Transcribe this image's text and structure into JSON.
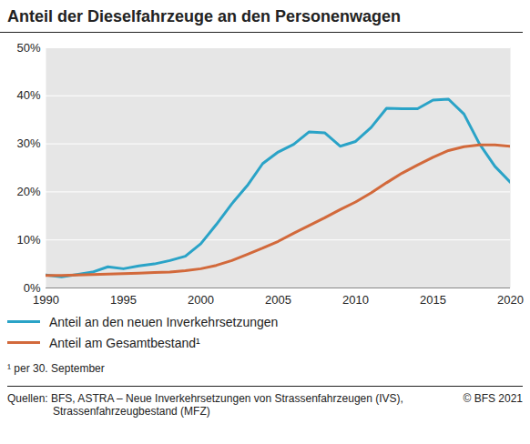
{
  "chart_data": {
    "type": "line",
    "title": "Anteil der Dieselfahrzeuge an den Personenwagen",
    "x": [
      1990,
      1991,
      1992,
      1993,
      1994,
      1995,
      1996,
      1997,
      1998,
      1999,
      2000,
      2001,
      2002,
      2003,
      2004,
      2005,
      2006,
      2007,
      2008,
      2009,
      2010,
      2011,
      2012,
      2013,
      2014,
      2015,
      2016,
      2017,
      2018,
      2019,
      2020
    ],
    "series": [
      {
        "name": "Anteil an den neuen Inverkehrsetzungen",
        "color": "#2aa3c7",
        "values": [
          2.7,
          2.3,
          2.8,
          3.3,
          4.4,
          4.0,
          4.6,
          5.0,
          5.7,
          6.6,
          9.2,
          13.2,
          17.5,
          21.3,
          25.9,
          28.3,
          29.9,
          32.5,
          32.3,
          29.5,
          30.5,
          33.4,
          37.4,
          37.3,
          37.3,
          39.1,
          39.3,
          36.2,
          30.0,
          25.3,
          22.0
        ]
      },
      {
        "name": "Anteil am Gesamtbestand¹",
        "color": "#d2693b",
        "values": [
          2.6,
          2.6,
          2.7,
          2.8,
          2.9,
          3.0,
          3.1,
          3.2,
          3.3,
          3.6,
          4.0,
          4.7,
          5.7,
          7.0,
          8.3,
          9.7,
          11.4,
          13.0,
          14.6,
          16.3,
          17.9,
          19.8,
          21.9,
          23.9,
          25.6,
          27.2,
          28.6,
          29.4,
          29.8,
          29.8,
          29.5
        ]
      }
    ],
    "xlim": [
      1990,
      2020
    ],
    "xticks": [
      1990,
      1995,
      2000,
      2005,
      2010,
      2015,
      2020
    ],
    "ylim": [
      0,
      50
    ],
    "yticks": [
      {
        "value": 0,
        "label": "0%"
      },
      {
        "value": 10,
        "label": "10%"
      },
      {
        "value": 20,
        "label": "20%"
      },
      {
        "value": 30,
        "label": "30%"
      },
      {
        "value": 40,
        "label": "40%"
      },
      {
        "value": 50,
        "label": "50%"
      }
    ],
    "grid": true,
    "legend": "bottom",
    "footnote": "¹  per 30. September",
    "source": [
      "Quellen: BFS, ASTRA – Neue Inverkehrsetzungen von Strassenfahrzeugen (IVS),",
      "Strassenfahrzeugbestand (MFZ)"
    ],
    "copyright": "© BFS 2021"
  }
}
